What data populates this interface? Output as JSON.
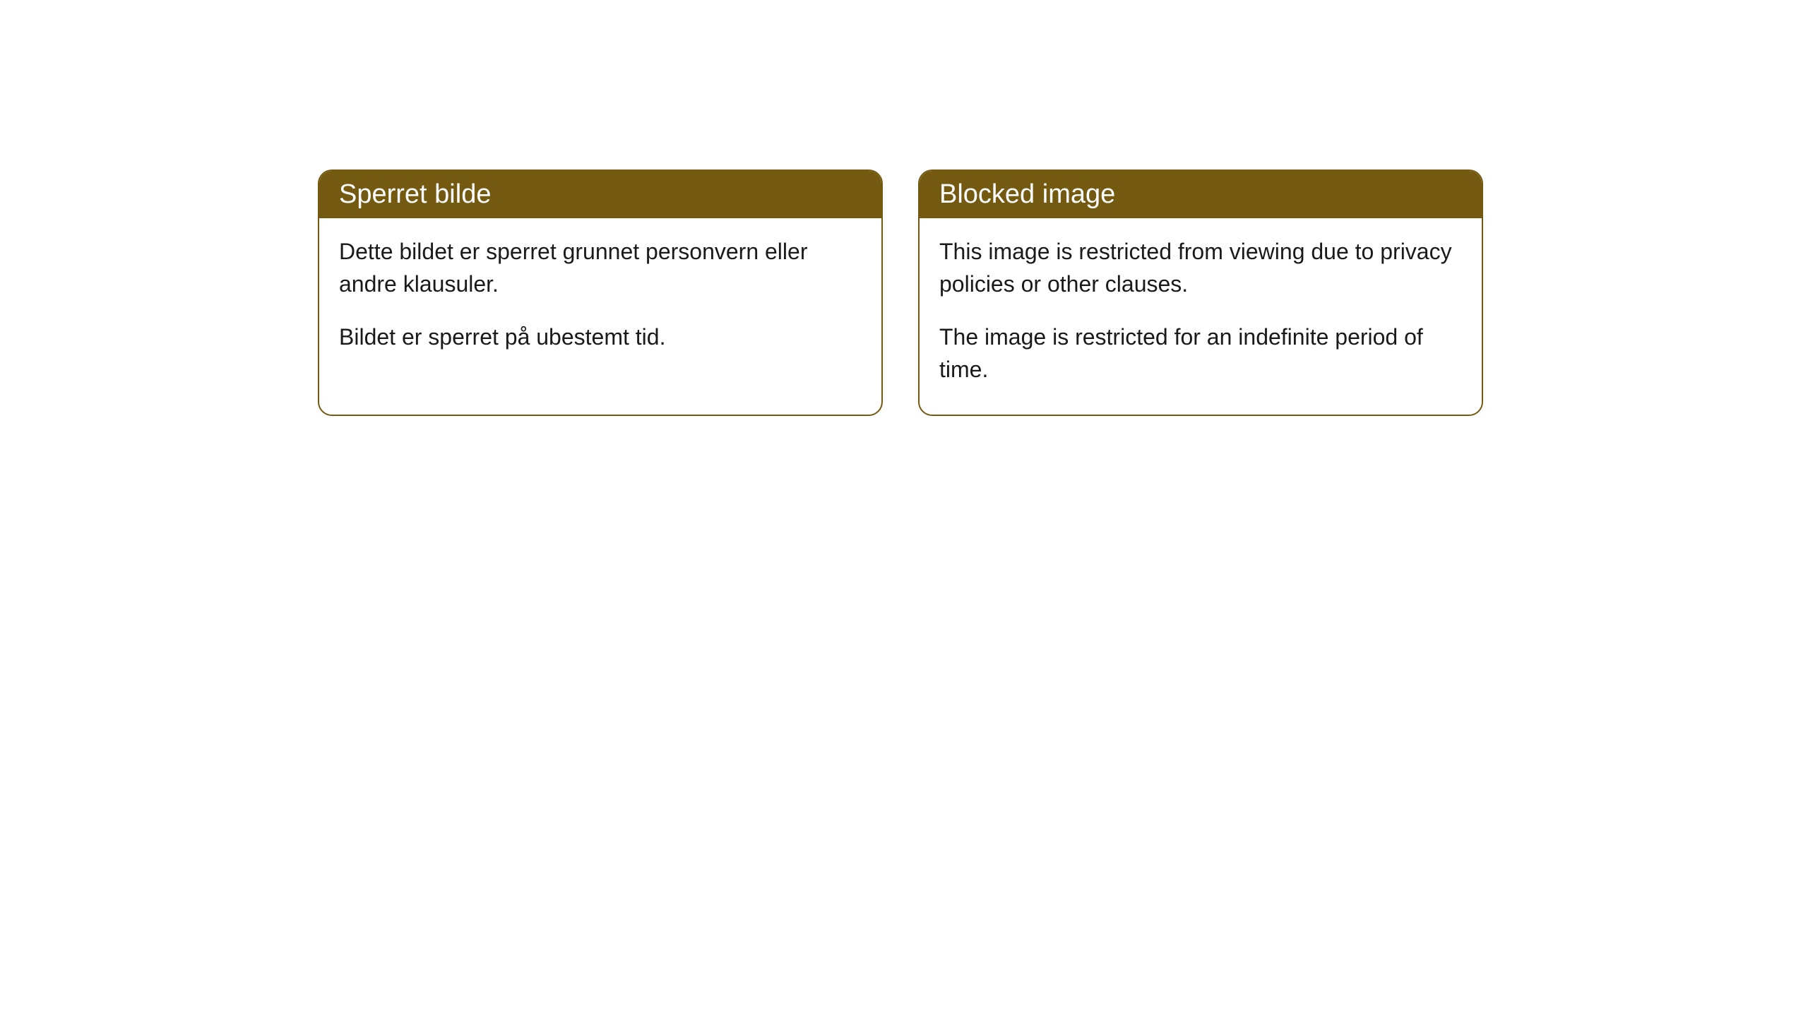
{
  "cards": [
    {
      "title": "Sperret bilde",
      "paragraph1": "Dette bildet er sperret grunnet personvern eller andre klausuler.",
      "paragraph2": "Bildet er sperret på ubestemt tid."
    },
    {
      "title": "Blocked image",
      "paragraph1": "This image is restricted from viewing due to privacy policies or other clauses.",
      "paragraph2": "The image is restricted for an indefinite period of time."
    }
  ],
  "style": {
    "header_bg": "#745911",
    "header_text": "#ffffff",
    "border_color": "#745911",
    "body_text": "#1a1a1a",
    "background": "#ffffff",
    "border_radius": 20,
    "title_fontsize": 38,
    "body_fontsize": 32
  }
}
